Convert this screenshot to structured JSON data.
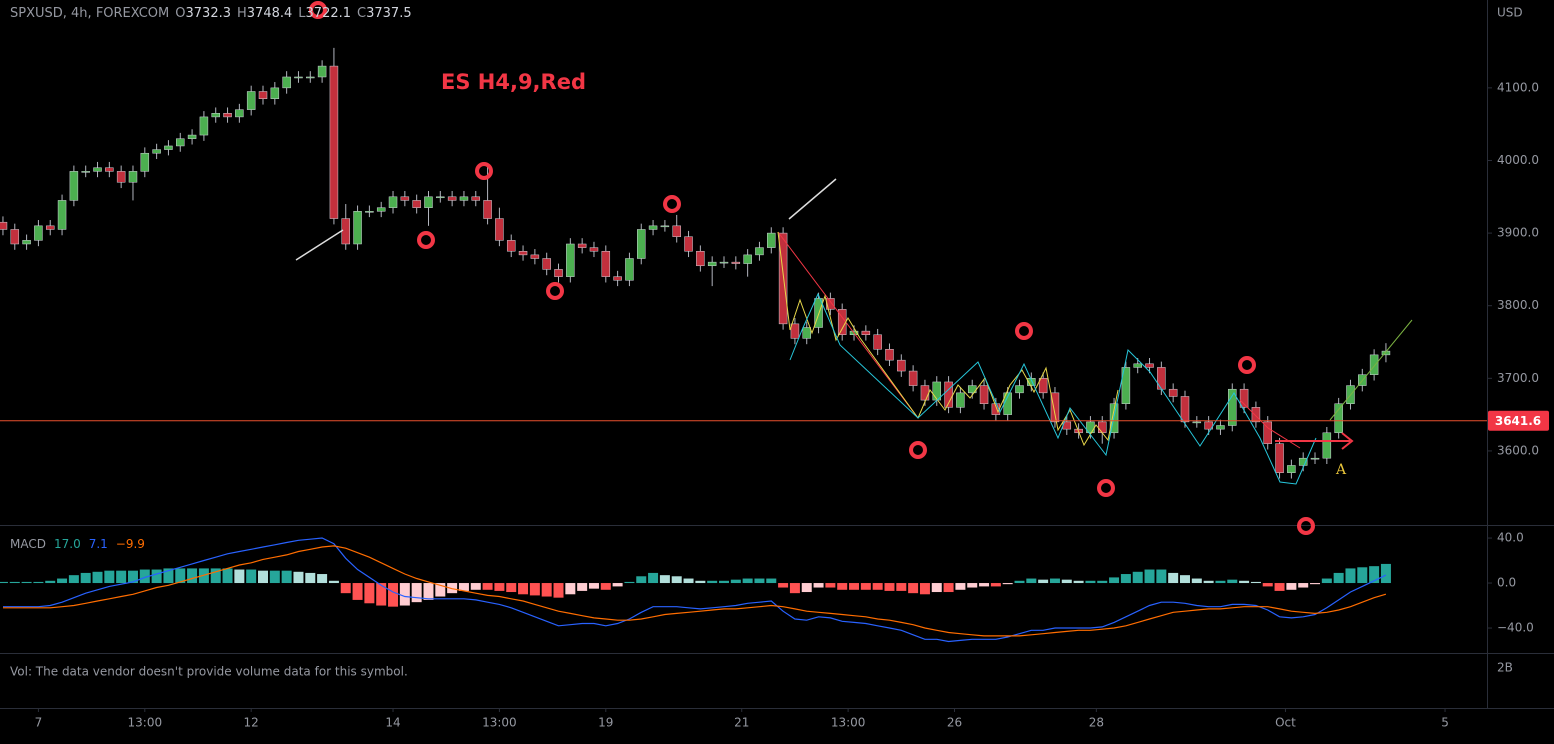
{
  "chart_data": {
    "type": "candlestick",
    "symbol": "SPXUSD, 4h, FOREXCOM",
    "ohlc_letters": [
      "O",
      "H",
      "L",
      "C"
    ],
    "currency": "USD",
    "annotation": "ES H4,9,Red",
    "marker_label": "A",
    "up_color": "#4caf50",
    "down_color": "#c2303d",
    "open": [
      3915,
      3905,
      3885,
      3890,
      3910,
      3905,
      3945,
      3985,
      3985,
      3990,
      3985,
      3970,
      3985,
      4010,
      4015,
      4020,
      4030,
      4035,
      4060,
      4065,
      4060,
      4070,
      4095,
      4085,
      4100,
      4115,
      4115,
      4115,
      4130,
      3920,
      3885,
      3930,
      3930,
      3935,
      3950,
      3945,
      3935,
      3950,
      3950,
      3945,
      3950,
      3945,
      3920,
      3890,
      3875,
      3870,
      3865,
      3850,
      3840,
      3885,
      3880,
      3875,
      3840,
      3835,
      3865,
      3905,
      3910,
      3910,
      3895,
      3875,
      3855,
      3860,
      3860,
      3858,
      3870,
      3880,
      3900,
      3775,
      3755,
      3770,
      3810,
      3795,
      3760,
      3765,
      3760,
      3740,
      3725,
      3710,
      3690,
      3670,
      3695,
      3660,
      3680,
      3690,
      3665,
      3650,
      3680,
      3690,
      3700,
      3680,
      3640,
      3630,
      3625,
      3640,
      3625,
      3665,
      3715,
      3720,
      3715,
      3685,
      3675,
      3640,
      3640,
      3630,
      3635,
      3685,
      3660,
      3640,
      3610,
      3570,
      3580,
      3590,
      3590,
      3625,
      3665,
      3690,
      3705,
      3732.3
    ],
    "high": [
      3923,
      3913,
      3898,
      3918,
      3918,
      3953,
      3993,
      3993,
      3998,
      3998,
      3993,
      3993,
      4018,
      4023,
      4028,
      4038,
      4043,
      4068,
      4073,
      4073,
      4078,
      4103,
      4103,
      4108,
      4123,
      4123,
      4123,
      4138,
      4155,
      3940,
      3938,
      3938,
      3943,
      3958,
      3958,
      3953,
      3958,
      3958,
      3958,
      3958,
      3958,
      3995,
      3935,
      3898,
      3883,
      3878,
      3873,
      3858,
      3893,
      3893,
      3888,
      3883,
      3848,
      3873,
      3913,
      3918,
      3918,
      3925,
      3903,
      3883,
      3868,
      3868,
      3868,
      3878,
      3888,
      3908,
      3908,
      3783,
      3778,
      3818,
      3818,
      3803,
      3773,
      3773,
      3768,
      3748,
      3733,
      3718,
      3698,
      3703,
      3703,
      3688,
      3698,
      3698,
      3673,
      3688,
      3698,
      3708,
      3708,
      3688,
      3648,
      3638,
      3648,
      3648,
      3673,
      3723,
      3728,
      3728,
      3723,
      3693,
      3683,
      3648,
      3648,
      3643,
      3693,
      3693,
      3668,
      3648,
      3618,
      3588,
      3598,
      3598,
      3633,
      3673,
      3698,
      3713,
      3740,
      3748.4
    ],
    "low": [
      3897,
      3877,
      3877,
      3882,
      3897,
      3897,
      3937,
      3977,
      3977,
      3977,
      3962,
      3945,
      3977,
      4002,
      4007,
      4012,
      4022,
      4027,
      4052,
      4052,
      4052,
      4062,
      4077,
      4077,
      4092,
      4107,
      4107,
      4107,
      3912,
      3877,
      3877,
      3922,
      3922,
      3927,
      3937,
      3927,
      3910,
      3942,
      3937,
      3937,
      3937,
      3912,
      3882,
      3867,
      3862,
      3857,
      3842,
      3832,
      3832,
      3872,
      3867,
      3832,
      3827,
      3827,
      3857,
      3897,
      3902,
      3887,
      3867,
      3847,
      3827,
      3852,
      3850,
      3840,
      3862,
      3872,
      3767,
      3747,
      3747,
      3762,
      3787,
      3752,
      3752,
      3752,
      3732,
      3717,
      3702,
      3682,
      3662,
      3662,
      3652,
      3652,
      3672,
      3657,
      3642,
      3642,
      3672,
      3682,
      3672,
      3632,
      3622,
      3617,
      3617,
      3610,
      3617,
      3657,
      3707,
      3707,
      3677,
      3667,
      3632,
      3632,
      3622,
      3622,
      3627,
      3652,
      3632,
      3602,
      3562,
      3562,
      3572,
      3582,
      3582,
      3617,
      3657,
      3682,
      3697,
      3722.1
    ],
    "close": [
      3905,
      3885,
      3890,
      3910,
      3905,
      3945,
      3985,
      3985,
      3990,
      3985,
      3970,
      3985,
      4010,
      4015,
      4020,
      4030,
      4035,
      4060,
      4065,
      4060,
      4070,
      4095,
      4085,
      4100,
      4115,
      4115,
      4115,
      4130,
      3920,
      3885,
      3930,
      3930,
      3935,
      3950,
      3945,
      3935,
      3950,
      3950,
      3945,
      3950,
      3945,
      3920,
      3890,
      3875,
      3870,
      3865,
      3850,
      3840,
      3885,
      3880,
      3875,
      3840,
      3835,
      3865,
      3905,
      3910,
      3910,
      3895,
      3875,
      3855,
      3860,
      3860,
      3858,
      3870,
      3880,
      3900,
      3775,
      3755,
      3770,
      3810,
      3795,
      3760,
      3765,
      3760,
      3740,
      3725,
      3710,
      3690,
      3670,
      3695,
      3660,
      3680,
      3690,
      3665,
      3650,
      3680,
      3690,
      3700,
      3680,
      3640,
      3630,
      3625,
      3640,
      3625,
      3665,
      3715,
      3720,
      3715,
      3685,
      3675,
      3640,
      3640,
      3630,
      3635,
      3685,
      3660,
      3640,
      3610,
      3570,
      3580,
      3590,
      3590,
      3625,
      3665,
      3690,
      3705,
      3732.3,
      3737.5
    ],
    "xlim": [
      -0.25,
      125.55
    ],
    "xticks": [
      {
        "value": 3,
        "label": "7"
      },
      {
        "value": 12,
        "label": "13:00"
      },
      {
        "value": 21,
        "label": "12"
      },
      {
        "value": 33,
        "label": "14"
      },
      {
        "value": 42,
        "label": "13:00"
      },
      {
        "value": 51,
        "label": "19"
      },
      {
        "value": 62.5,
        "label": "21"
      },
      {
        "value": 71.5,
        "label": "13:00"
      },
      {
        "value": 80.5,
        "label": "26"
      },
      {
        "value": 92.5,
        "label": "28"
      },
      {
        "value": 108.5,
        "label": "Oct"
      },
      {
        "value": 122,
        "label": "5"
      }
    ],
    "ylim": [
      3498,
      4221
    ],
    "yticks": [
      {
        "value": 3600,
        "label": "3600.0"
      },
      {
        "value": 3700,
        "label": "3700.0"
      },
      {
        "value": 3800,
        "label": "3800.0"
      },
      {
        "value": 3900,
        "label": "3900.0"
      },
      {
        "value": 4000,
        "label": "4000.0"
      },
      {
        "value": 4100,
        "label": "4100.0"
      }
    ],
    "price_line": {
      "value": 3641.6,
      "color": "#e8502e",
      "label_color": "#f23645"
    },
    "macd": {
      "title": "MACD",
      "ylim": [
        -62.2,
        51.6
      ],
      "yticks": [
        {
          "value": 40,
          "label": "40.0"
        },
        {
          "value": 0,
          "label": "0.0"
        },
        {
          "value": -40,
          "label": "−40.0"
        }
      ],
      "hist_colors": [
        "#26a69a",
        "#b2dfdb",
        "#ff5252",
        "#ffcdd2"
      ],
      "histogram": {
        "color": "#26a69a",
        "last_label": "17.0",
        "values": [
          1,
          1,
          1,
          1,
          2,
          4,
          7,
          9,
          10,
          11,
          11,
          11,
          12,
          12,
          13,
          13,
          13,
          13,
          13,
          13,
          12,
          12,
          11,
          11,
          11,
          10,
          9,
          8,
          2,
          -9,
          -15,
          -18,
          -20,
          -21,
          -20,
          -17,
          -15,
          -12,
          -9,
          -7,
          -6,
          -6,
          -7,
          -8,
          -10,
          -11,
          -12,
          -13,
          -10,
          -7,
          -5,
          -6,
          -3,
          1,
          6,
          9,
          7,
          6,
          4,
          2,
          2,
          2,
          3,
          4,
          4,
          4,
          -4,
          -9,
          -8,
          -4,
          -4,
          -6,
          -6,
          -6,
          -6,
          -7,
          -7,
          -9,
          -10,
          -8,
          -8,
          -6,
          -4,
          -3,
          -3,
          -1,
          2,
          4,
          3,
          4,
          3,
          2,
          2,
          2,
          5,
          8,
          10,
          12,
          12,
          9,
          7,
          4,
          2,
          2,
          3,
          2,
          1,
          -3,
          -7,
          -6,
          -4,
          -1,
          4,
          9,
          13,
          14,
          15,
          17
        ]
      },
      "series": [
        {
          "color": "#2962ff",
          "last_label": "7.1",
          "values": [
            -21,
            -21,
            -21,
            -21,
            -20,
            -17,
            -13,
            -9,
            -6,
            -3,
            -1,
            1,
            5,
            8,
            11,
            14,
            17,
            20,
            23,
            26,
            28,
            30,
            32,
            34,
            36,
            38,
            39,
            40,
            35,
            22,
            12,
            5,
            -2,
            -8,
            -12,
            -13,
            -14,
            -14,
            -14,
            -14,
            -15,
            -17,
            -19,
            -22,
            -26,
            -30,
            -34,
            -38,
            -37,
            -36,
            -36,
            -38,
            -36,
            -32,
            -26,
            -21,
            -21,
            -21,
            -22,
            -23,
            -22,
            -21,
            -20,
            -18,
            -17,
            -16,
            -25,
            -32,
            -33,
            -30,
            -31,
            -34,
            -35,
            -36,
            -38,
            -40,
            -42,
            -46,
            -50,
            -50,
            -52,
            -51,
            -50,
            -50,
            -50,
            -48,
            -45,
            -42,
            -42,
            -40,
            -40,
            -40,
            -40,
            -39,
            -35,
            -30,
            -25,
            -20,
            -17,
            -17,
            -18,
            -20,
            -21,
            -21,
            -19,
            -19,
            -20,
            -24,
            -30,
            -31,
            -30,
            -28,
            -22,
            -15,
            -8,
            -3,
            2,
            7.1
          ]
        },
        {
          "color": "#ff6d00",
          "last_label": "−9.9",
          "values": [
            -22,
            -22,
            -22,
            -22,
            -22,
            -21,
            -20,
            -18,
            -16,
            -14,
            -12,
            -10,
            -7,
            -4,
            -2,
            1,
            4,
            7,
            10,
            13,
            16,
            18,
            21,
            23,
            25,
            28,
            30,
            32,
            33,
            31,
            27,
            23,
            18,
            13,
            8,
            4,
            1,
            -2,
            -5,
            -7,
            -9,
            -11,
            -12,
            -14,
            -16,
            -19,
            -22,
            -25,
            -27,
            -29,
            -31,
            -32,
            -33,
            -33,
            -32,
            -30,
            -28,
            -27,
            -26,
            -25,
            -24,
            -23,
            -23,
            -22,
            -21,
            -20,
            -21,
            -23,
            -25,
            -26,
            -27,
            -28,
            -29,
            -30,
            -32,
            -33,
            -35,
            -37,
            -40,
            -42,
            -44,
            -45,
            -46,
            -47,
            -47,
            -47,
            -47,
            -46,
            -45,
            -44,
            -43,
            -42,
            -42,
            -41,
            -40,
            -38,
            -35,
            -32,
            -29,
            -26,
            -25,
            -24,
            -23,
            -23,
            -22,
            -21,
            -21,
            -21,
            -23,
            -25,
            -26,
            -27,
            -26,
            -24,
            -21,
            -17,
            -13,
            -9.9
          ]
        }
      ]
    },
    "volume": {
      "message": "Vol: The data vendor doesn't provide volume data for this symbol.",
      "axis_label": "2B"
    }
  }
}
